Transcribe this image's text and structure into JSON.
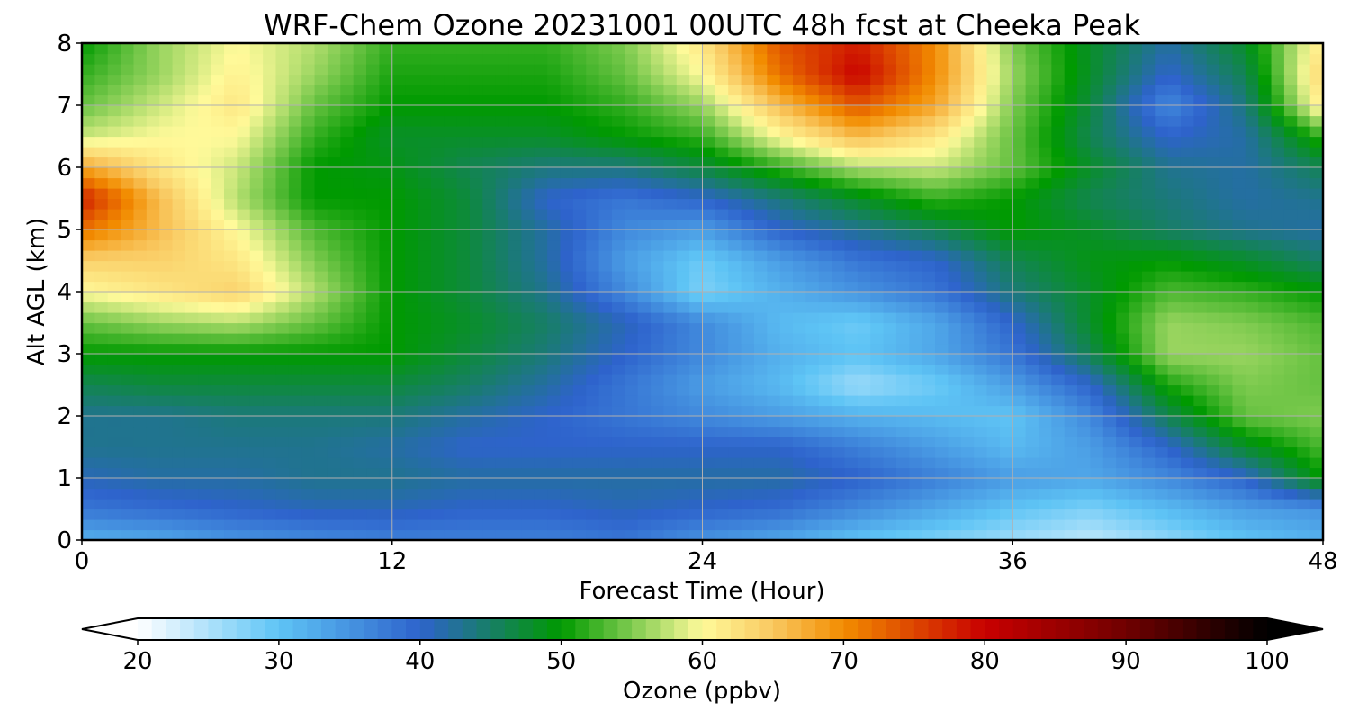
{
  "chart_data": {
    "type": "heatmap",
    "title": "WRF-Chem Ozone  20231001 00UTC 48h fcst at Cheeka Peak",
    "xlabel": "Forecast Time (Hour)",
    "ylabel": "Alt AGL (km)",
    "xlim": [
      0,
      48
    ],
    "ylim": [
      0,
      8
    ],
    "x_ticks": [
      "0",
      "12",
      "24",
      "36",
      "48"
    ],
    "y_ticks": [
      "0",
      "1",
      "2",
      "3",
      "4",
      "5",
      "6",
      "7",
      "8"
    ],
    "grid": true,
    "x": [
      0,
      3,
      6,
      9,
      12,
      15,
      18,
      21,
      24,
      27,
      30,
      33,
      36,
      39,
      42,
      45,
      48
    ],
    "y": [
      0,
      0.5,
      1,
      1.5,
      2,
      2.5,
      3,
      3.5,
      4,
      4.5,
      5,
      5.5,
      6,
      6.5,
      7,
      7.5,
      8
    ],
    "z": [
      [
        32,
        33,
        35,
        36,
        37,
        37,
        37,
        38,
        35,
        33,
        30,
        28,
        26,
        24,
        27,
        30,
        32
      ],
      [
        38,
        39,
        40,
        41,
        41,
        40,
        40,
        41,
        40,
        39,
        36,
        33,
        30,
        28,
        31,
        34,
        35
      ],
      [
        41,
        42,
        42,
        43,
        43,
        42,
        42,
        42,
        42,
        42,
        40,
        37,
        34,
        33,
        36,
        40,
        50
      ],
      [
        43,
        43,
        43,
        43,
        42,
        40,
        40,
        40,
        40,
        40,
        37,
        34,
        31,
        34,
        40,
        48,
        53
      ],
      [
        43,
        43,
        44,
        44,
        44,
        42,
        40,
        38,
        36,
        34,
        32,
        31,
        30,
        36,
        46,
        54,
        55
      ],
      [
        46,
        47,
        47,
        47,
        47,
        45,
        42,
        38,
        34,
        31,
        26,
        29,
        34,
        40,
        51,
        55,
        54
      ],
      [
        50,
        50,
        50,
        50,
        50,
        47,
        44,
        40,
        36,
        32,
        30,
        33,
        38,
        46,
        56,
        56,
        54
      ],
      [
        54,
        56,
        57,
        54,
        50,
        48,
        45,
        41,
        36,
        31,
        29,
        33,
        40,
        48,
        56,
        55,
        53
      ],
      [
        60,
        62,
        64,
        57,
        50,
        47,
        43,
        36,
        28,
        32,
        35,
        38,
        44,
        48,
        53,
        52,
        50
      ],
      [
        64,
        64,
        62,
        55,
        50,
        47,
        42,
        34,
        29,
        34,
        38,
        40,
        46,
        49,
        50,
        48,
        45
      ],
      [
        72,
        66,
        60,
        53,
        50,
        47,
        42,
        36,
        34,
        40,
        43,
        46,
        50,
        48,
        45,
        43,
        42
      ],
      [
        78,
        66,
        57,
        50,
        50,
        47,
        40,
        38,
        40,
        44,
        48,
        52,
        50,
        46,
        44,
        42,
        43
      ],
      [
        68,
        62,
        58,
        50,
        49,
        46,
        44,
        44,
        47,
        52,
        57,
        58,
        54,
        48,
        43,
        42,
        46
      ],
      [
        58,
        60,
        60,
        52,
        48,
        48,
        48,
        50,
        52,
        60,
        66,
        62,
        54,
        46,
        40,
        42,
        52
      ],
      [
        54,
        58,
        62,
        54,
        50,
        50,
        50,
        52,
        56,
        66,
        74,
        68,
        55,
        47,
        36,
        44,
        62
      ],
      [
        52,
        56,
        61,
        56,
        51,
        51,
        51,
        54,
        60,
        72,
        80,
        70,
        56,
        48,
        40,
        46,
        64
      ],
      [
        50,
        56,
        60,
        57,
        52,
        52,
        52,
        55,
        62,
        74,
        78,
        70,
        55,
        48,
        42,
        48,
        62
      ]
    ],
    "colorbar": {
      "label": "Ozone  (ppbv)",
      "min": 20,
      "max": 100,
      "ticks": [
        "20",
        "30",
        "40",
        "50",
        "60",
        "70",
        "80",
        "90",
        "100"
      ],
      "extend": "both",
      "stops": [
        {
          "v": 20,
          "c": "#ffffff"
        },
        {
          "v": 30,
          "c": "#5ec4f5"
        },
        {
          "v": 40,
          "c": "#2e63cc"
        },
        {
          "v": 50,
          "c": "#009a00"
        },
        {
          "v": 55,
          "c": "#7fcb50"
        },
        {
          "v": 60,
          "c": "#fffa9a"
        },
        {
          "v": 65,
          "c": "#f9c860"
        },
        {
          "v": 70,
          "c": "#f28c00"
        },
        {
          "v": 80,
          "c": "#c80000"
        },
        {
          "v": 90,
          "c": "#700000"
        },
        {
          "v": 100,
          "c": "#000000"
        }
      ]
    }
  }
}
